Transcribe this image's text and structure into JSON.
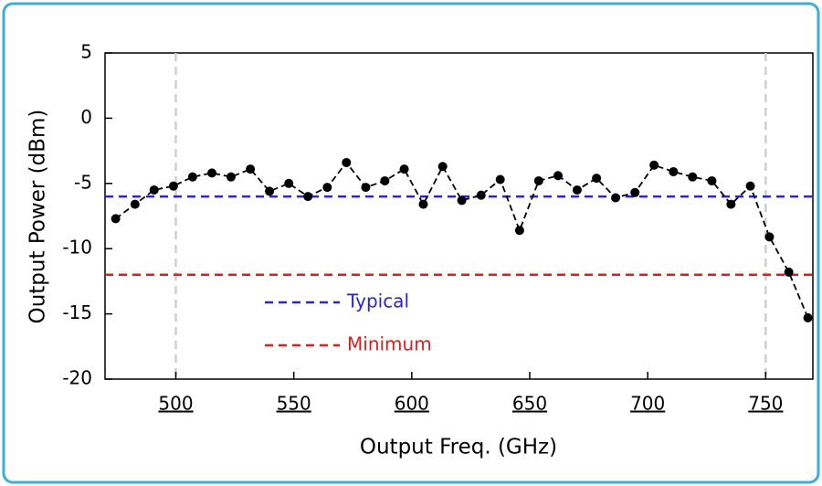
{
  "chart_data": {
    "type": "line",
    "x_label": "Output Freq. (GHz)",
    "y_label": "Output Power (dBm)",
    "x": [
      474.5,
      482.7,
      490.8,
      499.0,
      507.1,
      515.3,
      523.4,
      531.6,
      539.7,
      547.9,
      556.0,
      564.2,
      572.3,
      580.5,
      588.6,
      596.8,
      604.9,
      613.1,
      621.2,
      629.4,
      637.5,
      645.7,
      653.8,
      662.0,
      670.1,
      678.3,
      686.4,
      694.6,
      702.7,
      710.9,
      719.0,
      727.2,
      735.3,
      743.5,
      751.6,
      759.8,
      767.9
    ],
    "series": [
      {
        "color": "#000000",
        "values": [
          -7.7,
          -6.6,
          -5.5,
          -5.2,
          -4.5,
          -4.2,
          -4.5,
          -3.9,
          -5.6,
          -5.0,
          -6.0,
          -5.3,
          -3.4,
          -5.3,
          -4.8,
          -3.9,
          -6.6,
          -3.7,
          -6.3,
          -5.9,
          -4.7,
          -8.6,
          -4.8,
          -4.4,
          -5.5,
          -4.6,
          -6.1,
          -5.7,
          -3.6,
          -4.1,
          -4.5,
          -4.8,
          -6.6,
          -5.2,
          -9.1,
          -11.8,
          -15.3
        ]
      }
    ],
    "ref_lines": [
      {
        "name": "Typical",
        "value": -6,
        "color": "#2a22e0"
      },
      {
        "name": "Minimum",
        "value": -12,
        "color": "#e51b1b"
      }
    ],
    "vlines": [
      500,
      750
    ],
    "xlim": [
      470,
      770
    ],
    "ylim": [
      -20,
      5
    ],
    "xticks": [
      500,
      550,
      600,
      650,
      700,
      750
    ],
    "yticks": [
      -20,
      -15,
      -10,
      -5,
      0,
      5
    ]
  }
}
